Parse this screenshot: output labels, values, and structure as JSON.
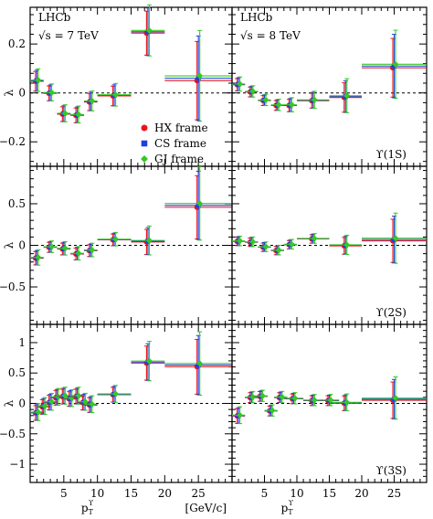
{
  "experiment_label": "LHCb",
  "energy_labels": {
    "left": "√s = 7 TeV",
    "right": "√s = 8 TeV"
  },
  "state_labels": [
    "ϒ(1S)",
    "ϒ(2S)",
    "ϒ(3S)"
  ],
  "x_axis": {
    "label": "p",
    "label_sub": "T",
    "label_sup": "ϒ",
    "unit": "[GeV/c]",
    "range": [
      0,
      30
    ],
    "ticks": [
      5,
      10,
      15,
      20,
      25
    ],
    "tick_labels": [
      "5",
      "10",
      "15",
      "20",
      "25"
    ]
  },
  "y_axis": {
    "label": "λ"
  },
  "legend": {
    "placement": "top-left panel, centre-left",
    "entries": [
      {
        "label": "HX frame",
        "marker": "circle",
        "color": "#e8141c"
      },
      {
        "label": "CS frame",
        "marker": "square",
        "color": "#1f3fe0"
      },
      {
        "label": "GJ frame",
        "marker": "diamond",
        "color": "#34c924"
      }
    ]
  },
  "colors": {
    "hx": "#e8141c",
    "cs": "#1f3fe0",
    "gj": "#34c924",
    "zero_line": "#000000"
  },
  "chart_data": {
    "type": "scatter",
    "layout": "3 rows (states) x 2 columns (energies)",
    "x_bins": [
      [
        0,
        1
      ],
      [
        1,
        2
      ],
      [
        2,
        3
      ],
      [
        3,
        4
      ],
      [
        4,
        5
      ],
      [
        5,
        6
      ],
      [
        6,
        7
      ],
      [
        7,
        8
      ],
      [
        8,
        9
      ],
      [
        9,
        10
      ],
      [
        10,
        11
      ],
      [
        11,
        12
      ],
      [
        12,
        13
      ],
      [
        13,
        14
      ],
      [
        14,
        15
      ],
      [
        15,
        16
      ],
      [
        16,
        18
      ],
      [
        18,
        20
      ],
      [
        20,
        22
      ],
      [
        22,
        25
      ],
      [
        25,
        30
      ],
      [
        30,
        40
      ]
    ],
    "rows": [
      {
        "state": "ϒ(1S)",
        "ylim": [
          -0.3,
          0.35
        ],
        "yticks": [
          -0.2,
          0,
          0.2
        ],
        "ytick_labels": [
          "−0.2",
          "0",
          "0.2"
        ],
        "panels": [
          {
            "energy": "√s = 7 TeV",
            "points": [
              {
                "x": 1.0,
                "xerr": 1.0,
                "y": 0.05,
                "yerr": 0.04
              },
              {
                "x": 3.0,
                "xerr": 1.0,
                "y": 0.0,
                "yerr": 0.03
              },
              {
                "x": 5.0,
                "xerr": 1.0,
                "y": -0.085,
                "yerr": 0.03
              },
              {
                "x": 7.0,
                "xerr": 1.0,
                "y": -0.09,
                "yerr": 0.03
              },
              {
                "x": 9.0,
                "xerr": 1.0,
                "y": -0.035,
                "yerr": 0.035
              },
              {
                "x": 12.5,
                "xerr": 2.5,
                "y": -0.01,
                "yerr": 0.04
              },
              {
                "x": 17.5,
                "xerr": 2.5,
                "y": 0.25,
                "yerr": 0.09
              },
              {
                "x": 25.0,
                "xerr": 5.0,
                "y": 0.06,
                "yerr": 0.16
              }
            ]
          },
          {
            "energy": "√s = 8 TeV",
            "points": [
              {
                "x": 1.0,
                "xerr": 1.0,
                "y": 0.035,
                "yerr": 0.025
              },
              {
                "x": 3.0,
                "xerr": 1.0,
                "y": 0.005,
                "yerr": 0.02
              },
              {
                "x": 5.0,
                "xerr": 1.0,
                "y": -0.03,
                "yerr": 0.02
              },
              {
                "x": 7.0,
                "xerr": 1.0,
                "y": -0.05,
                "yerr": 0.02
              },
              {
                "x": 9.0,
                "xerr": 1.0,
                "y": -0.05,
                "yerr": 0.025
              },
              {
                "x": 12.5,
                "xerr": 2.5,
                "y": -0.03,
                "yerr": 0.03
              },
              {
                "x": 17.5,
                "xerr": 2.5,
                "y": -0.015,
                "yerr": 0.06
              },
              {
                "x": 25.0,
                "xerr": 5.0,
                "y": 0.11,
                "yerr": 0.12
              }
            ]
          }
        ]
      },
      {
        "state": "ϒ(2S)",
        "ylim": [
          -0.95,
          0.95
        ],
        "yticks": [
          -0.5,
          0,
          0.5
        ],
        "ytick_labels": [
          "−0.5",
          "0",
          "0.5"
        ],
        "panels": [
          {
            "energy": "√s = 7 TeV",
            "points": [
              {
                "x": 1.0,
                "xerr": 1.0,
                "y": -0.15,
                "yerr": 0.08
              },
              {
                "x": 3.0,
                "xerr": 1.0,
                "y": -0.02,
                "yerr": 0.06
              },
              {
                "x": 5.0,
                "xerr": 1.0,
                "y": -0.04,
                "yerr": 0.07
              },
              {
                "x": 7.0,
                "xerr": 1.0,
                "y": -0.1,
                "yerr": 0.07
              },
              {
                "x": 9.0,
                "xerr": 1.0,
                "y": -0.06,
                "yerr": 0.07
              },
              {
                "x": 12.5,
                "xerr": 2.5,
                "y": 0.07,
                "yerr": 0.07
              },
              {
                "x": 17.5,
                "xerr": 2.5,
                "y": 0.05,
                "yerr": 0.15
              },
              {
                "x": 25.0,
                "xerr": 5.0,
                "y": 0.48,
                "yerr": 0.38
              }
            ]
          },
          {
            "energy": "√s = 8 TeV",
            "points": [
              {
                "x": 1.0,
                "xerr": 1.0,
                "y": 0.05,
                "yerr": 0.05
              },
              {
                "x": 3.0,
                "xerr": 1.0,
                "y": 0.04,
                "yerr": 0.05
              },
              {
                "x": 5.0,
                "xerr": 1.0,
                "y": -0.02,
                "yerr": 0.05
              },
              {
                "x": 7.0,
                "xerr": 1.0,
                "y": -0.06,
                "yerr": 0.05
              },
              {
                "x": 9.0,
                "xerr": 1.0,
                "y": 0.01,
                "yerr": 0.05
              },
              {
                "x": 12.5,
                "xerr": 2.5,
                "y": 0.08,
                "yerr": 0.05
              },
              {
                "x": 17.5,
                "xerr": 2.5,
                "y": 0.0,
                "yerr": 0.1
              },
              {
                "x": 25.0,
                "xerr": 5.0,
                "y": 0.07,
                "yerr": 0.26
              }
            ]
          }
        ]
      },
      {
        "state": "ϒ(3S)",
        "ylim": [
          -1.3,
          1.3
        ],
        "yticks": [
          -1,
          -0.5,
          0,
          0.5,
          1
        ],
        "ytick_labels": [
          "−1",
          "−0.5",
          "0",
          "0.5",
          "1"
        ],
        "panels": [
          {
            "energy": "√s = 7 TeV",
            "points": [
              {
                "x": 1.0,
                "xerr": 1.0,
                "y": -0.15,
                "yerr": 0.12
              },
              {
                "x": 2.0,
                "xerr": 1.0,
                "y": -0.05,
                "yerr": 0.12
              },
              {
                "x": 3.0,
                "xerr": 1.0,
                "y": 0.02,
                "yerr": 0.12
              },
              {
                "x": 4.0,
                "xerr": 1.0,
                "y": 0.1,
                "yerr": 0.12
              },
              {
                "x": 5.0,
                "xerr": 1.0,
                "y": 0.12,
                "yerr": 0.12
              },
              {
                "x": 6.0,
                "xerr": 1.0,
                "y": 0.08,
                "yerr": 0.12
              },
              {
                "x": 7.0,
                "xerr": 1.0,
                "y": 0.12,
                "yerr": 0.12
              },
              {
                "x": 8.0,
                "xerr": 1.0,
                "y": 0.02,
                "yerr": 0.12
              },
              {
                "x": 9.0,
                "xerr": 1.0,
                "y": -0.02,
                "yerr": 0.12
              },
              {
                "x": 12.5,
                "xerr": 2.5,
                "y": 0.15,
                "yerr": 0.12
              },
              {
                "x": 17.5,
                "xerr": 2.5,
                "y": 0.68,
                "yerr": 0.28
              },
              {
                "x": 25.0,
                "xerr": 5.0,
                "y": 0.63,
                "yerr": 0.45
              }
            ]
          },
          {
            "energy": "√s = 8 TeV",
            "points": [
              {
                "x": 1.0,
                "xerr": 1.0,
                "y": -0.2,
                "yerr": 0.12
              },
              {
                "x": 3.0,
                "xerr": 1.0,
                "y": 0.1,
                "yerr": 0.08
              },
              {
                "x": 4.5,
                "xerr": 1.0,
                "y": 0.12,
                "yerr": 0.08
              },
              {
                "x": 6.0,
                "xerr": 1.0,
                "y": -0.12,
                "yerr": 0.08
              },
              {
                "x": 7.5,
                "xerr": 1.0,
                "y": 0.1,
                "yerr": 0.08
              },
              {
                "x": 9.5,
                "xerr": 1.5,
                "y": 0.08,
                "yerr": 0.08
              },
              {
                "x": 12.5,
                "xerr": 1.5,
                "y": 0.05,
                "yerr": 0.08
              },
              {
                "x": 15.0,
                "xerr": 1.5,
                "y": 0.05,
                "yerr": 0.08
              },
              {
                "x": 17.5,
                "xerr": 2.5,
                "y": 0.01,
                "yerr": 0.12
              },
              {
                "x": 25.0,
                "xerr": 5.0,
                "y": 0.07,
                "yerr": 0.3
              }
            ]
          }
        ]
      }
    ]
  }
}
